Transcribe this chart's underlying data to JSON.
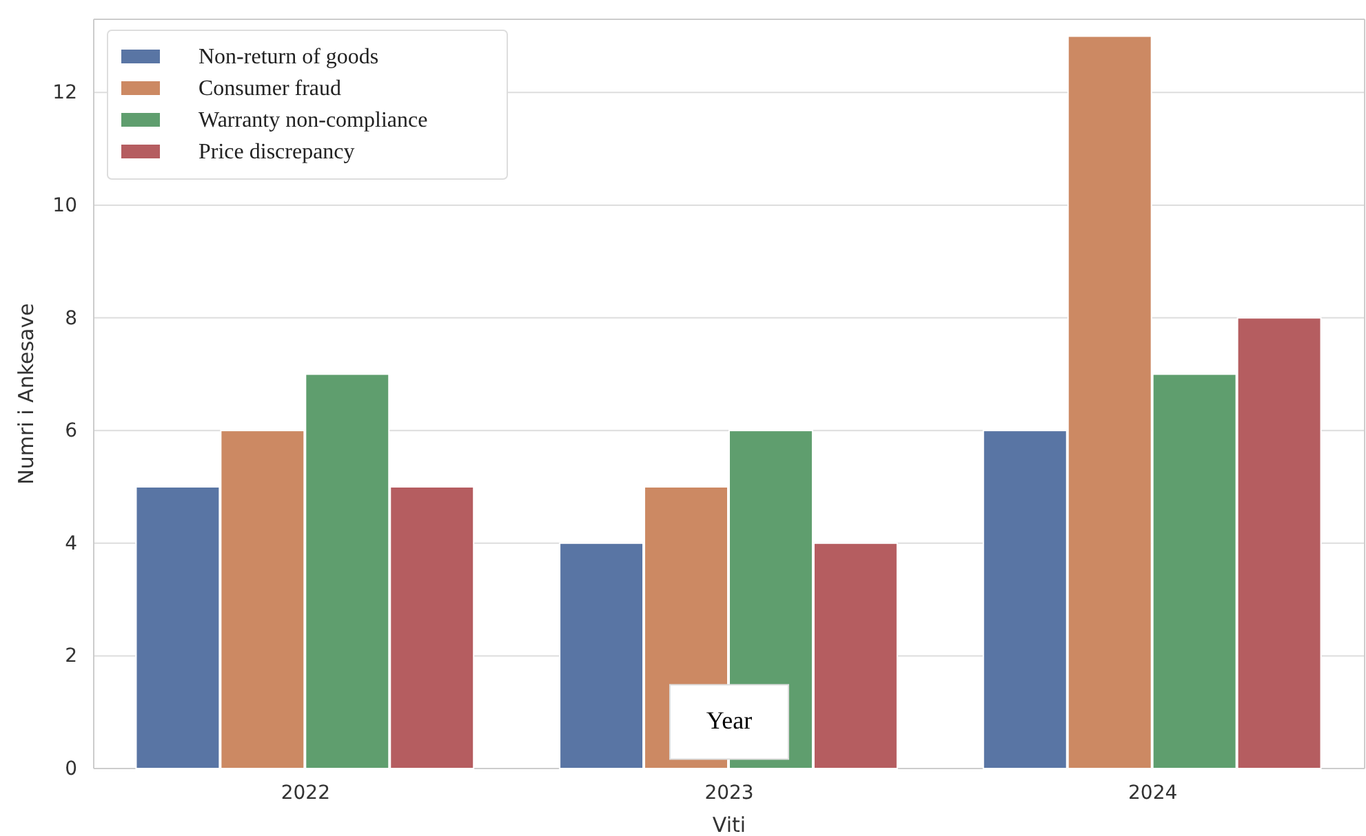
{
  "chart_data": {
    "type": "bar",
    "xlabel": "Viti",
    "ylabel": "Numri i Ankesave",
    "categories": [
      "2022",
      "2023",
      "2024"
    ],
    "series": [
      {
        "name": "Non-return of goods",
        "color": "#5975a4",
        "values": [
          5,
          4,
          6
        ]
      },
      {
        "name": "Consumer fraud",
        "color": "#cc8963",
        "values": [
          6,
          5,
          13
        ]
      },
      {
        "name": "Warranty non-compliance",
        "color": "#5f9e6e",
        "values": [
          7,
          6,
          7
        ]
      },
      {
        "name": "Price discrepancy",
        "color": "#b55d60",
        "values": [
          5,
          4,
          8
        ]
      }
    ],
    "ylim": [
      0,
      13.3
    ],
    "yticks": [
      0,
      2,
      4,
      6,
      8,
      10,
      12
    ],
    "grid": "y",
    "legend": "top left",
    "annotations": [
      {
        "text": "Year",
        "x": "2023",
        "y": 0.9
      }
    ]
  }
}
